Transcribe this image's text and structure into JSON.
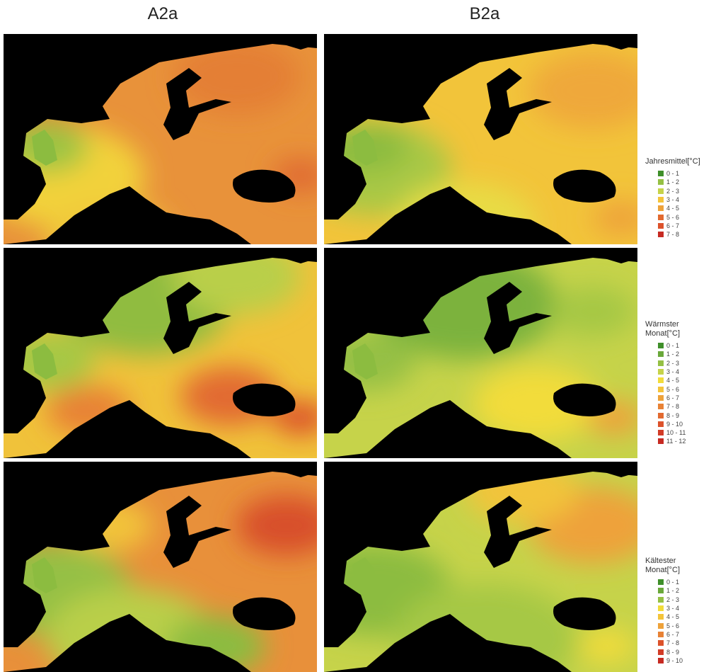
{
  "columns": [
    "A2a",
    "B2a"
  ],
  "legends": [
    {
      "title": "Jahresmittel[°C]",
      "items": [
        "0 - 1",
        "1 - 2",
        "2 - 3",
        "3 - 4",
        "4 - 5",
        "5 - 6",
        "6 - 7",
        "7 - 8"
      ]
    },
    {
      "title": "Wärmster Monat[°C]",
      "items": [
        "0 - 1",
        "1 - 2",
        "2 - 3",
        "3 - 4",
        "4 - 5",
        "5 - 6",
        "6 - 7",
        "7 - 8",
        "8 - 9",
        "9 - 10",
        "10 - 11",
        "11 - 12"
      ]
    },
    {
      "title": "Kältester Monat[°C]",
      "items": [
        "0 - 1",
        "1 - 2",
        "2 - 3",
        "3 - 4",
        "4 - 5",
        "5 - 6",
        "6 - 7",
        "7 - 8",
        "8 - 9",
        "9 - 10"
      ]
    }
  ]
}
